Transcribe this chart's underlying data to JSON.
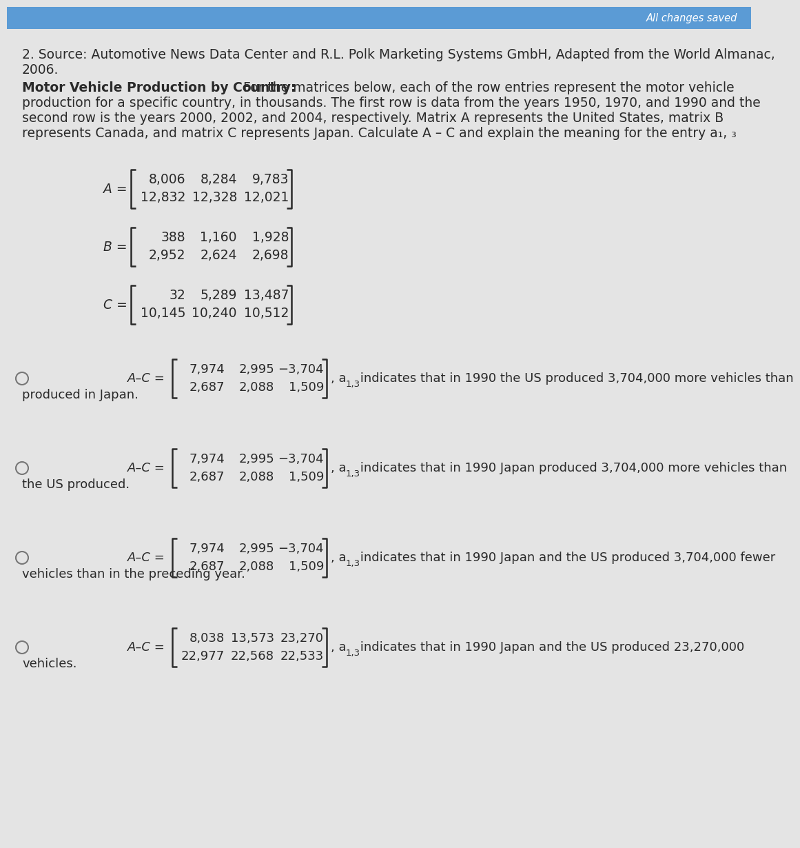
{
  "bg_color": "#e4e4e4",
  "top_bar_color": "#5b9bd5",
  "header_text": "All changes saved",
  "source_line1": "2. Source: Automotive News Data Center and R.L. Polk Marketing Systems GmbH, Adapted from the World Almanac,",
  "source_line2": "2006.",
  "problem_bold": "Motor Vehicle Production by Country:",
  "problem_rest_lines": [
    " For the matrices below, each of the row entries represent the motor vehicle",
    "production for a specific country, in thousands. The first row is data from the years 1950, 1970, and 1990 and the",
    "second row is the years 2000, 2002, and 2004, respectively. Matrix A represents the United States, matrix B",
    "represents Canada, and matrix C represents Japan. Calculate A – C and explain the meaning for the entry a₁, ₃"
  ],
  "matrix_A": [
    [
      "8,006",
      "8,284",
      "9,783"
    ],
    [
      "12,832",
      "12,328",
      "12,021"
    ]
  ],
  "matrix_B": [
    [
      "388",
      "1,160",
      "1,928"
    ],
    [
      "2,952",
      "2,624",
      "2,698"
    ]
  ],
  "matrix_C": [
    [
      "32",
      "5,289",
      "13,487"
    ],
    [
      "10,145",
      "10,240",
      "10,512"
    ]
  ],
  "options": [
    {
      "matrix": [
        [
          "7,974",
          "2,995",
          "−3,704"
        ],
        [
          "2,687",
          "2,088",
          "1,509"
        ]
      ],
      "subscript": "1,3",
      "desc_line1": " indicates that in 1990 the US produced 3,704,000 more vehicles than",
      "desc_line2": "produced in Japan."
    },
    {
      "matrix": [
        [
          "7,974",
          "2,995",
          "−3,704"
        ],
        [
          "2,687",
          "2,088",
          "1,509"
        ]
      ],
      "subscript": "1,3",
      "desc_line1": " indicates that in 1990 Japan produced 3,704,000 more vehicles than",
      "desc_line2": "the US produced."
    },
    {
      "matrix": [
        [
          "7,974",
          "2,995",
          "−3,704"
        ],
        [
          "2,687",
          "2,088",
          "1,509"
        ]
      ],
      "subscript": "1,3",
      "desc_line1": " indicates that in 1990 Japan and the US produced 3,704,000 fewer",
      "desc_line2": "vehicles than in the preceding year."
    },
    {
      "matrix": [
        [
          "8,038",
          "13,573",
          "23,270"
        ],
        [
          "22,977",
          "22,568",
          "22,533"
        ]
      ],
      "subscript": "1,3",
      "desc_line1": " indicates that in 1990 Japan and the US produced 23,270,000",
      "desc_line2": "vehicles."
    }
  ],
  "text_color": "#2a2a2a",
  "matrix_color": "#2a2a2a",
  "radio_color": "#777777",
  "body_fontsize": 13.5,
  "matrix_fontsize": 13.5,
  "option_fontsize": 13.0,
  "header_fontsize": 10.5
}
